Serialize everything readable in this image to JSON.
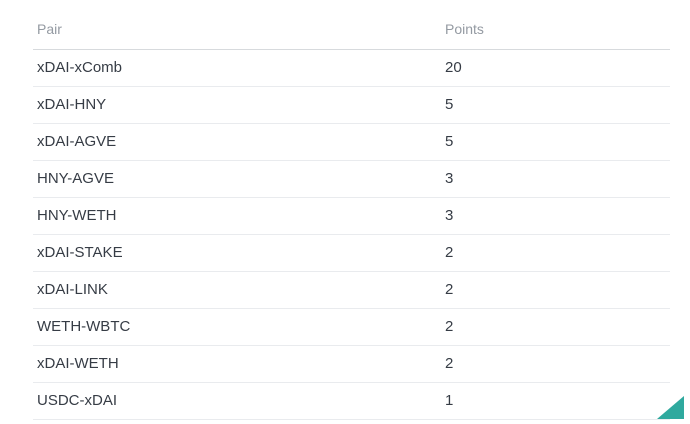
{
  "chart_data": {
    "type": "table",
    "columns": [
      "Pair",
      "Points"
    ],
    "rows": [
      {
        "pair": "xDAI-xComb",
        "points": 20
      },
      {
        "pair": "xDAI-HNY",
        "points": 5
      },
      {
        "pair": "xDAI-AGVE",
        "points": 5
      },
      {
        "pair": "HNY-AGVE",
        "points": 3
      },
      {
        "pair": "HNY-WETH",
        "points": 3
      },
      {
        "pair": "xDAI-STAKE",
        "points": 2
      },
      {
        "pair": "xDAI-LINK",
        "points": 2
      },
      {
        "pair": "WETH-WBTC",
        "points": 2
      },
      {
        "pair": "xDAI-WETH",
        "points": 2
      },
      {
        "pair": "USDC-xDAI",
        "points": 1
      }
    ]
  },
  "colors": {
    "background": "#ffffff",
    "header_text": "#949aa2",
    "body_text": "#363c45",
    "header_border": "#d7dadd",
    "row_border": "#e9ebee",
    "corner_triangle": "#2fa99e"
  }
}
